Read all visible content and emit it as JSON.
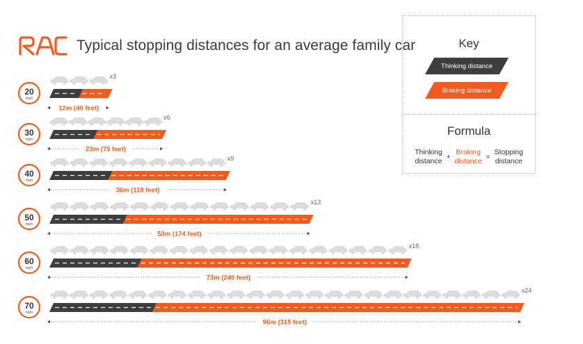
{
  "title": "Typical stopping distances for an average family car",
  "logo_text": "RAC",
  "colors": {
    "thinking": "#3e3e3e",
    "braking": "#f25b1e",
    "car": "#dcdcdc",
    "accent": "#f25b1e",
    "text": "#3a3a3a"
  },
  "key": {
    "title": "Key",
    "thinking_label": "Thinking distance",
    "braking_label": "Braking distance"
  },
  "formula": {
    "title": "Formula",
    "term1": "Thinking\ndistance",
    "op1": "+",
    "term2": "Braking\ndistance",
    "op2": "=",
    "term3": "Stopping\ndistance"
  },
  "speed_unit": "mph",
  "chart_data": {
    "type": "bar",
    "stacked": true,
    "orientation": "horizontal",
    "title": "Typical stopping distances for an average family car",
    "categories": [
      "20",
      "30",
      "40",
      "50",
      "60",
      "70"
    ],
    "series": [
      {
        "name": "Thinking distance",
        "values": [
          6,
          9,
          12,
          15,
          18,
          21
        ]
      },
      {
        "name": "Braking distance",
        "values": [
          6,
          14,
          24,
          38,
          55,
          75
        ]
      }
    ],
    "totals_m": [
      12,
      23,
      36,
      53,
      73,
      96
    ],
    "total_labels": [
      "12m (40 feet)",
      "23m (75 feet)",
      "36m (118 feet)",
      "53m (174 feet)",
      "73m (240 feet)",
      "96m (315 feet)"
    ],
    "car_lengths": [
      3,
      6,
      9,
      13,
      18,
      24
    ],
    "car_labels": [
      "x3",
      "x6",
      "x9",
      "x13",
      "x18",
      "x24"
    ],
    "legend": "right"
  }
}
